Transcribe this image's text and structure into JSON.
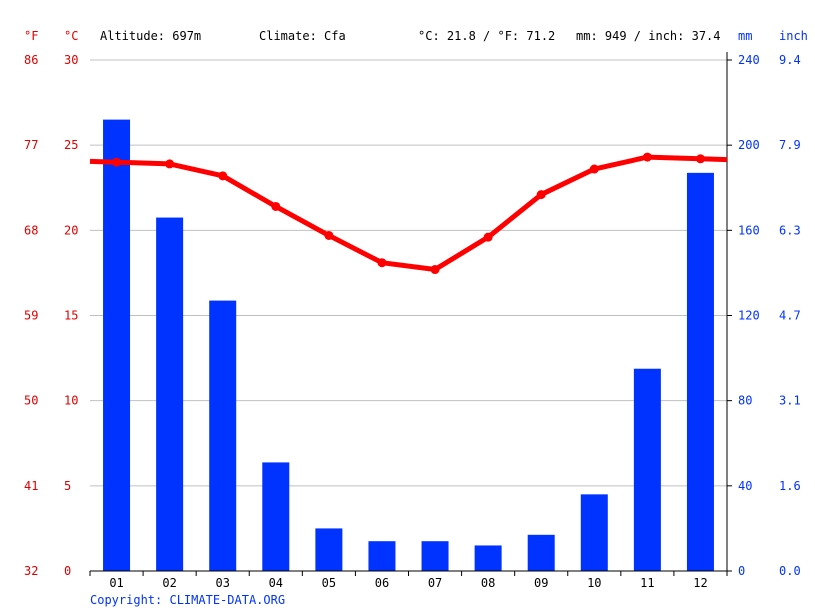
{
  "header": {
    "f_unit": "°F",
    "c_unit": "°C",
    "altitude": "Altitude: 697m",
    "climate": "Climate: Cfa",
    "temp_avg": "°C: 21.8 / °F: 71.2",
    "precip_avg": "mm: 949 / inch: 37.4",
    "mm_unit": "mm",
    "inch_unit": "inch"
  },
  "copyright": "Copyright: CLIMATE-DATA.ORG",
  "colors": {
    "temperature": "#ff0000",
    "precipitation": "#0033ff",
    "grid": "#c0c0c0",
    "axis": "#000000"
  },
  "chart_data": {
    "type": "bar",
    "categories": [
      "01",
      "02",
      "03",
      "04",
      "05",
      "06",
      "07",
      "08",
      "09",
      "10",
      "11",
      "12"
    ],
    "series": [
      {
        "type": "bar",
        "axis": "right",
        "values": [
          212,
          166,
          127,
          51,
          20,
          14,
          14,
          12,
          17,
          36,
          95,
          187
        ]
      },
      {
        "type": "line",
        "axis": "left",
        "values": [
          24.0,
          23.9,
          23.2,
          21.4,
          19.7,
          18.1,
          17.7,
          19.6,
          22.1,
          23.6,
          24.3,
          24.2
        ]
      }
    ],
    "left_axis": {
      "c_ticks": [
        "0",
        "5",
        "10",
        "15",
        "20",
        "25",
        "30"
      ],
      "f_ticks": [
        "32",
        "41",
        "50",
        "59",
        "68",
        "77",
        "86"
      ],
      "ylim": [
        0,
        30
      ]
    },
    "right_axis": {
      "mm_ticks": [
        "0",
        "40",
        "80",
        "120",
        "160",
        "200",
        "240"
      ],
      "inch_ticks": [
        "0.0",
        "1.6",
        "3.1",
        "4.7",
        "6.3",
        "7.9",
        "9.4"
      ],
      "ylim": [
        0,
        240
      ]
    },
    "grid": true
  }
}
